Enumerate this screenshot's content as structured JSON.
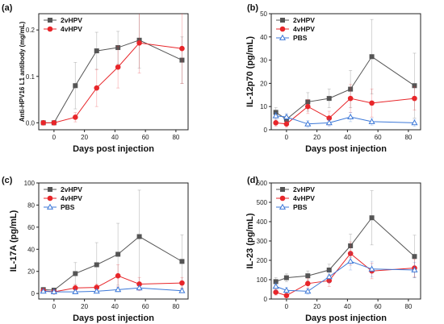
{
  "figure": {
    "panels": [
      {
        "label": "(a)",
        "chart_data": {
          "type": "line",
          "title": "",
          "xlabel": "Days post injection",
          "ylabel": "Anti-HPV16 L1 antibody (mg/mL)",
          "xlim": [
            -10,
            88
          ],
          "ylim": [
            -0.015,
            0.235
          ],
          "xticks": [
            0,
            20,
            40,
            60,
            80
          ],
          "yticks": [
            0.0,
            0.1,
            0.2
          ],
          "ytick_labels": [
            "0.0",
            "0.1",
            "0.2"
          ],
          "legend": "top-left",
          "series": [
            {
              "name": "2vHPV",
              "color": "#555555",
              "marker": "square",
              "x": [
                -7,
                0,
                14,
                28,
                42,
                56,
                84
              ],
              "y": [
                0.0,
                0.0,
                0.08,
                0.155,
                0.162,
                0.178,
                0.135
              ],
              "err": [
                0,
                0,
                0.05,
                0.04,
                0.035,
                0.06,
                0.05
              ]
            },
            {
              "name": "4vHPV",
              "color": "#e8262a",
              "marker": "circle",
              "x": [
                -7,
                0,
                14,
                28,
                42,
                56,
                84
              ],
              "y": [
                0.0,
                0.0,
                0.012,
                0.075,
                0.12,
                0.172,
                0.16
              ],
              "err": [
                0,
                0,
                0.01,
                0.04,
                0.045,
                0.065,
                0.075
              ]
            }
          ]
        }
      },
      {
        "label": "(b)",
        "chart_data": {
          "type": "line",
          "title": "",
          "xlabel": "Days post injection",
          "ylabel": "IL-12p70 (pg/mL)",
          "xlim": [
            -10,
            88
          ],
          "ylim": [
            0,
            50
          ],
          "xticks": [
            0,
            20,
            40,
            60,
            80
          ],
          "yticks": [
            0,
            10,
            20,
            30,
            40,
            50
          ],
          "ytick_labels": [
            "0",
            "10",
            "20",
            "30",
            "40",
            "50"
          ],
          "legend": "top-left",
          "series": [
            {
              "name": "2vHPV",
              "color": "#555555",
              "marker": "square",
              "x": [
                -7,
                0,
                14,
                28,
                42,
                56,
                84
              ],
              "y": [
                7.5,
                4.5,
                12,
                13.5,
                17.5,
                31.5,
                19
              ],
              "err": [
                2,
                2,
                4,
                4,
                8,
                16,
                14
              ]
            },
            {
              "name": "4vHPV",
              "color": "#e8262a",
              "marker": "circle",
              "x": [
                -7,
                0,
                14,
                28,
                42,
                56,
                84
              ],
              "y": [
                3,
                2.5,
                10,
                5,
                13.5,
                11.5,
                13.5
              ],
              "err": [
                1.5,
                1.5,
                3,
                3,
                6,
                6,
                5
              ]
            },
            {
              "name": "PBS",
              "color": "#3c78d8",
              "marker": "triangle",
              "x": [
                -7,
                0,
                14,
                28,
                42,
                56,
                84
              ],
              "y": [
                6,
                5.5,
                2.5,
                3,
                5.5,
                3.5,
                3
              ],
              "err": [
                1.5,
                1.5,
                1.5,
                1.5,
                2,
                1.5,
                1.5
              ]
            }
          ]
        }
      },
      {
        "label": "(c)",
        "chart_data": {
          "type": "line",
          "title": "",
          "xlabel": "Days post injection",
          "ylabel": "IL-17A (pg/mL)",
          "xlim": [
            -10,
            88
          ],
          "ylim": [
            -5,
            100
          ],
          "xticks": [
            0,
            20,
            40,
            60,
            80
          ],
          "yticks": [
            0,
            20,
            40,
            60,
            80,
            100
          ],
          "ytick_labels": [
            "0",
            "20",
            "40",
            "60",
            "80",
            "100"
          ],
          "legend": "top-left",
          "series": [
            {
              "name": "2vHPV",
              "color": "#555555",
              "marker": "square",
              "x": [
                -7,
                0,
                14,
                28,
                42,
                56,
                84
              ],
              "y": [
                3.5,
                3,
                18,
                26,
                35.5,
                51.5,
                29
              ],
              "err": [
                2,
                2,
                10,
                20,
                28,
                42,
                24
              ]
            },
            {
              "name": "4vHPV",
              "color": "#e8262a",
              "marker": "circle",
              "x": [
                -7,
                0,
                14,
                28,
                42,
                56,
                84
              ],
              "y": [
                2.5,
                1.5,
                5,
                5.5,
                16,
                8.5,
                9.5
              ],
              "err": [
                1.5,
                1,
                3,
                3,
                10,
                6,
                5
              ]
            },
            {
              "name": "PBS",
              "color": "#3c78d8",
              "marker": "triangle",
              "x": [
                -7,
                0,
                14,
                28,
                42,
                56,
                84
              ],
              "y": [
                2,
                1.5,
                1.5,
                2,
                3.5,
                5,
                2.5
              ],
              "err": [
                1,
                1,
                1,
                1,
                2,
                2,
                1.5
              ]
            }
          ]
        }
      },
      {
        "label": "(d)",
        "chart_data": {
          "type": "line",
          "title": "",
          "xlabel": "Days post injection",
          "ylabel": "IL-23 (pg/mL)",
          "xlim": [
            -10,
            88
          ],
          "ylim": [
            0,
            600
          ],
          "xticks": [
            0,
            20,
            40,
            60,
            80
          ],
          "yticks": [
            0,
            100,
            200,
            300,
            400,
            500,
            600
          ],
          "ytick_labels": [
            "0",
            "100",
            "200",
            "300",
            "400",
            "500",
            "600"
          ],
          "legend": "top-left",
          "series": [
            {
              "name": "2vHPV",
              "color": "#555555",
              "marker": "square",
              "x": [
                -7,
                0,
                14,
                28,
                42,
                56,
                84
              ],
              "y": [
                90,
                110,
                120,
                150,
                275,
                420,
                220
              ],
              "err": [
                20,
                20,
                25,
                30,
                60,
                140,
                110
              ]
            },
            {
              "name": "4vHPV",
              "color": "#e8262a",
              "marker": "circle",
              "x": [
                -7,
                0,
                14,
                28,
                42,
                56,
                84
              ],
              "y": [
                35,
                18,
                80,
                95,
                235,
                145,
                160
              ],
              "err": [
                15,
                10,
                25,
                30,
                60,
                40,
                45
              ]
            },
            {
              "name": "PBS",
              "color": "#3c78d8",
              "marker": "triangle",
              "x": [
                -7,
                0,
                14,
                28,
                42,
                56,
                84
              ],
              "y": [
                65,
                45,
                40,
                115,
                195,
                155,
                150
              ],
              "err": [
                20,
                15,
                15,
                30,
                45,
                40,
                40
              ]
            }
          ]
        }
      }
    ]
  }
}
